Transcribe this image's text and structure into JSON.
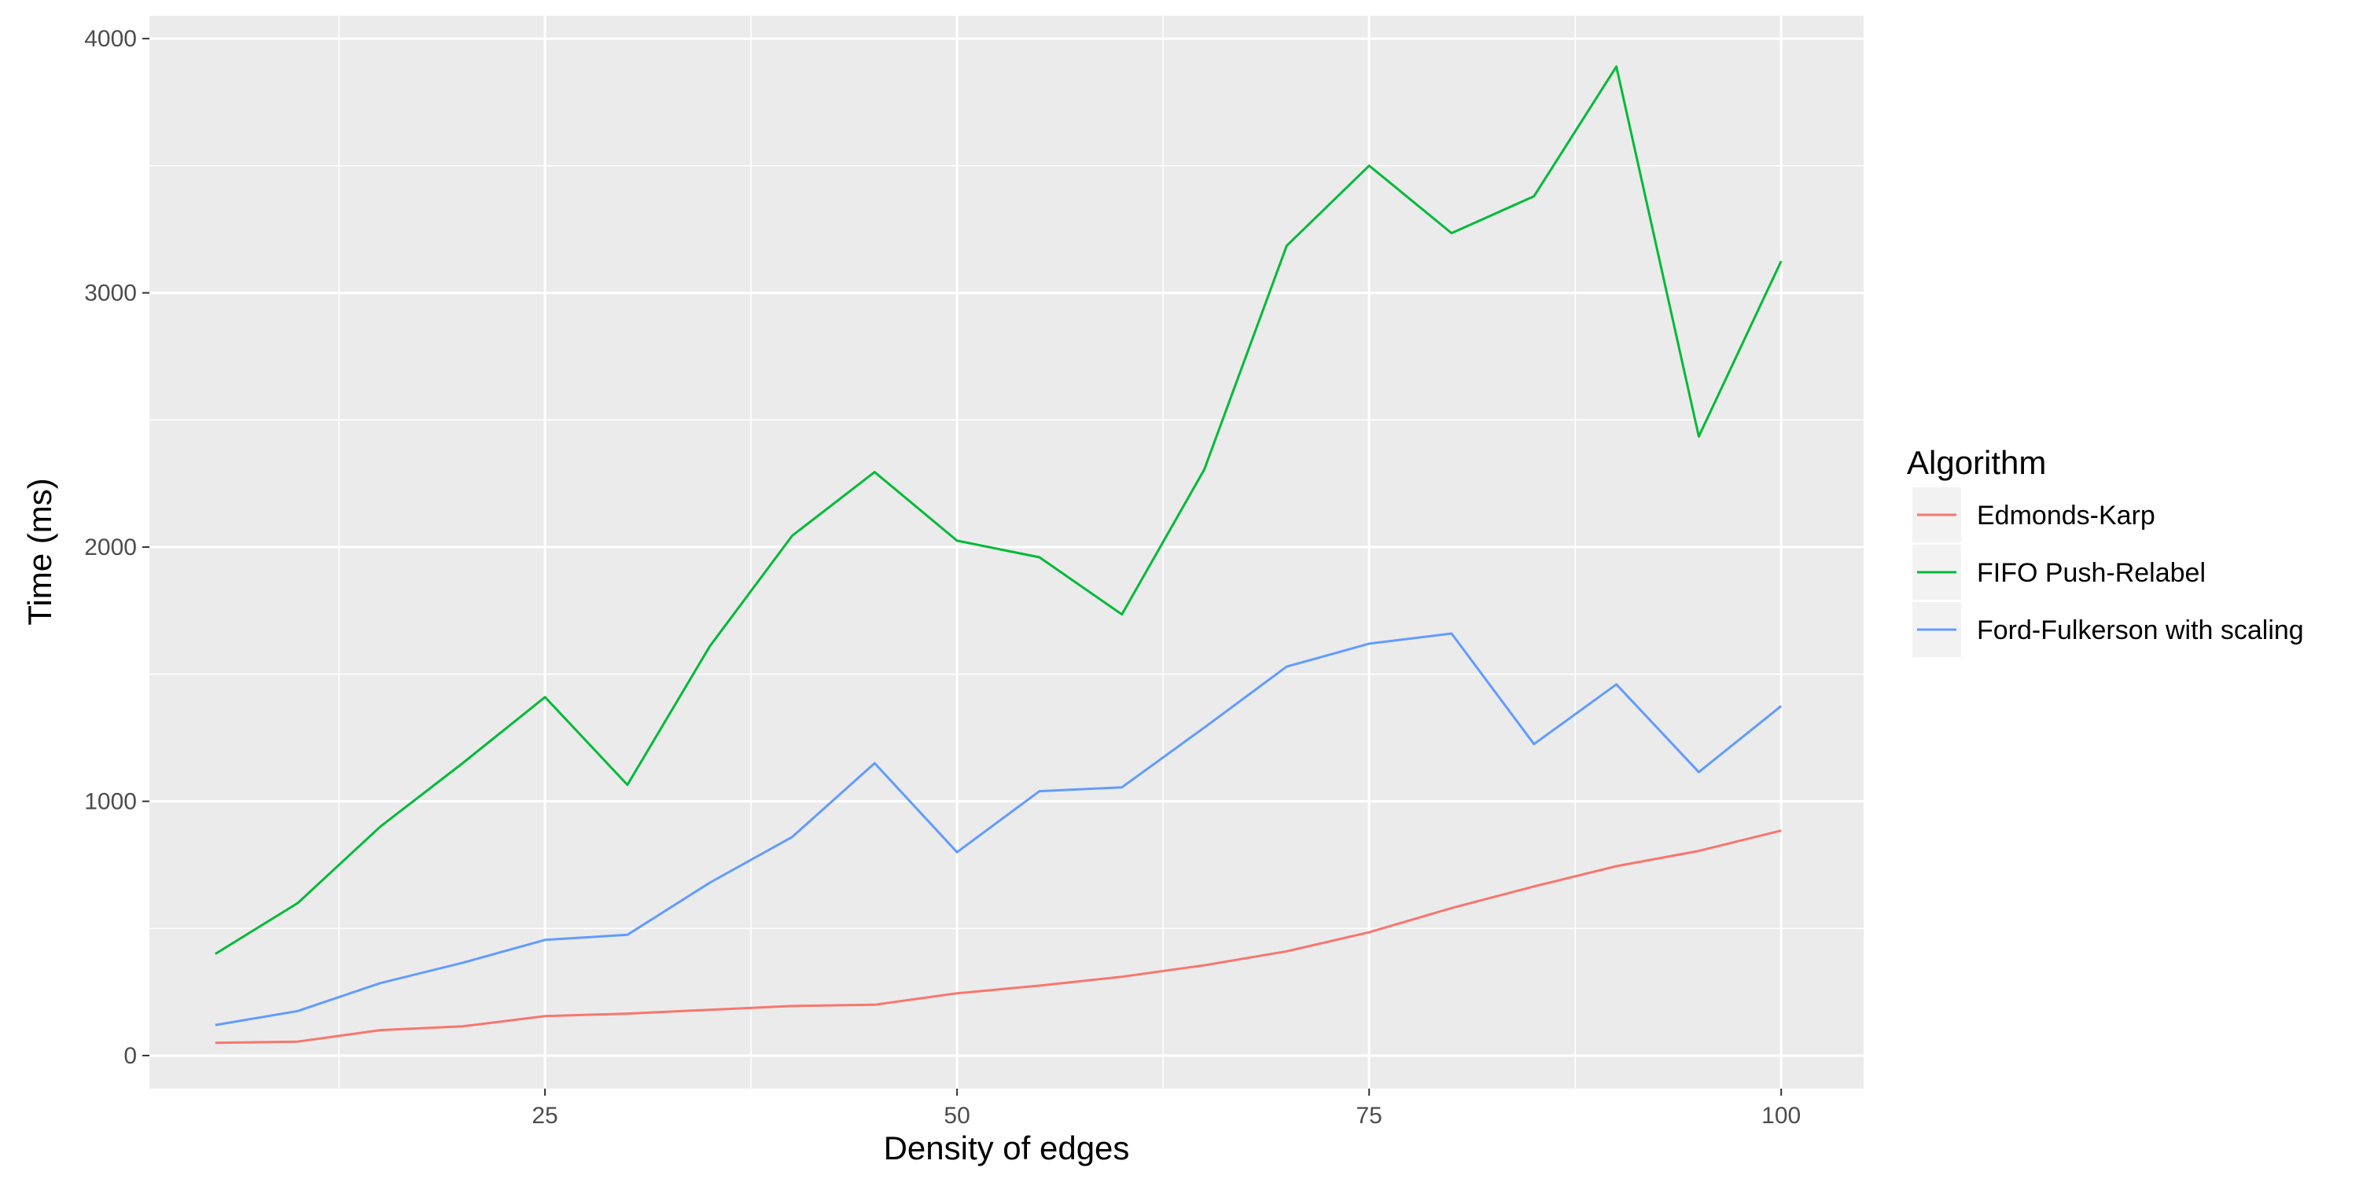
{
  "chart_data": {
    "type": "line",
    "xlabel": "Density of edges",
    "ylabel": "Time (ms)",
    "xlim": [
      1,
      105
    ],
    "ylim": [
      -130,
      4090
    ],
    "x_ticks": [
      25,
      50,
      75,
      100
    ],
    "x_minor_ticks": [
      12.5,
      37.5,
      62.5,
      87.5
    ],
    "y_ticks": [
      0,
      1000,
      2000,
      3000,
      4000
    ],
    "y_minor_ticks": [
      500,
      1500,
      2500,
      3500
    ],
    "grid": true,
    "legend": {
      "title": "Algorithm",
      "position": "right"
    },
    "x": [
      5,
      10,
      15,
      20,
      25,
      30,
      35,
      40,
      45,
      50,
      55,
      60,
      65,
      70,
      75,
      80,
      85,
      90,
      95,
      100
    ],
    "series": [
      {
        "name": "Edmonds-Karp",
        "color": "#F8766D",
        "values": [
          50,
          55,
          100,
          115,
          155,
          165,
          180,
          195,
          200,
          245,
          275,
          310,
          355,
          410,
          485,
          580,
          665,
          745,
          805,
          885
        ]
      },
      {
        "name": "FIFO Push-Relabel",
        "color": "#00BA38",
        "values": [
          400,
          600,
          900,
          1150,
          1410,
          1065,
          1610,
          2045,
          2295,
          2025,
          1960,
          1735,
          2305,
          3185,
          3500,
          3235,
          3380,
          3890,
          2435,
          3125
        ]
      },
      {
        "name": "Ford-Fulkerson with scaling",
        "color": "#619CFF",
        "values": [
          120,
          175,
          285,
          365,
          455,
          475,
          680,
          860,
          1150,
          800,
          1040,
          1055,
          1290,
          1530,
          1620,
          1660,
          1225,
          1460,
          1115,
          1375
        ]
      }
    ]
  }
}
